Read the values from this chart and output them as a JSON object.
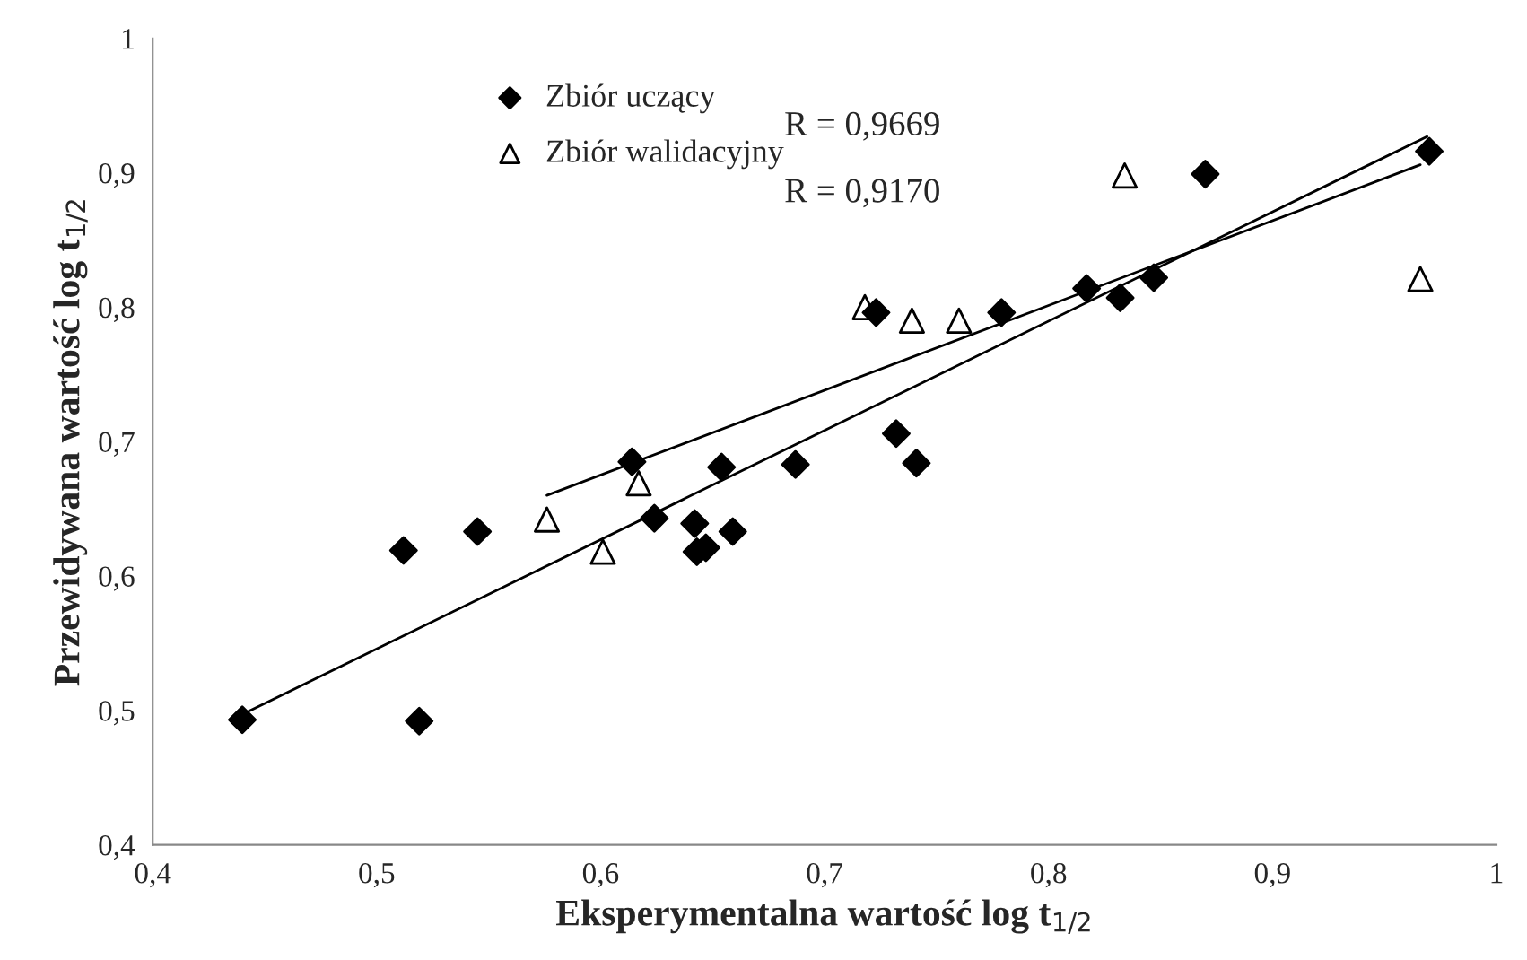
{
  "chart_data": {
    "type": "scatter",
    "xlabel": "Eksperymentalna wartość log t$_{1/2}$",
    "ylabel": "Przewidywana wartość log t$_{1/2}$",
    "xlim": [
      0.4,
      1
    ],
    "ylim": [
      0.4,
      1
    ],
    "xticks": [
      {
        "value": 0.4,
        "label": "0,4"
      },
      {
        "value": 0.5,
        "label": "0,5"
      },
      {
        "value": 0.6,
        "label": "0,6"
      },
      {
        "value": 0.7,
        "label": "0,7"
      },
      {
        "value": 0.8,
        "label": "0,8"
      },
      {
        "value": 0.9,
        "label": "0,9"
      },
      1
    ],
    "yticks": [
      {
        "value": 0.4,
        "label": "0,4"
      },
      {
        "value": 0.5,
        "label": "0,5"
      },
      {
        "value": 0.6,
        "label": "0,6"
      },
      {
        "value": 0.7,
        "label": "0,7"
      },
      {
        "value": 0.8,
        "label": "0,8"
      },
      {
        "value": 0.9,
        "label": "0,9"
      },
      1
    ],
    "grid": false,
    "legend": "top left",
    "annotations": [
      "R = 0,9669",
      "R = 0,9170"
    ],
    "series": [
      {
        "name": "Zbiór uczący",
        "color": "#000000",
        "marker": "diamond",
        "x": [
          0.44,
          0.519,
          0.512,
          0.545,
          0.614,
          0.624,
          0.642,
          0.659,
          0.643,
          0.647,
          0.654,
          0.687,
          0.723,
          0.732,
          0.741,
          0.779,
          0.817,
          0.832,
          0.847,
          0.87,
          0.97
        ],
        "values": [
          0.493,
          0.492,
          0.619,
          0.633,
          0.685,
          0.643,
          0.639,
          0.633,
          0.618,
          0.621,
          0.681,
          0.683,
          0.796,
          0.706,
          0.684,
          0.796,
          0.814,
          0.807,
          0.822,
          0.899,
          0.916
        ]
      },
      {
        "name": "Zbiór walidacyjny",
        "color": "#000000",
        "marker": "triangle",
        "x": [
          0.576,
          0.617,
          0.601,
          0.718,
          0.739,
          0.76,
          0.834,
          0.966
        ],
        "values": [
          0.642,
          0.669,
          0.618,
          0.8,
          0.79,
          0.79,
          0.898,
          0.821
        ]
      },
      {
        "type": "line",
        "color": "#000000",
        "x": [
          0.44,
          0.969
        ],
        "values": [
          0.497,
          0.927
        ]
      },
      {
        "type": "line",
        "color": "#000000",
        "x": [
          0.576,
          0.966
        ],
        "values": [
          0.66,
          0.906
        ]
      }
    ]
  }
}
